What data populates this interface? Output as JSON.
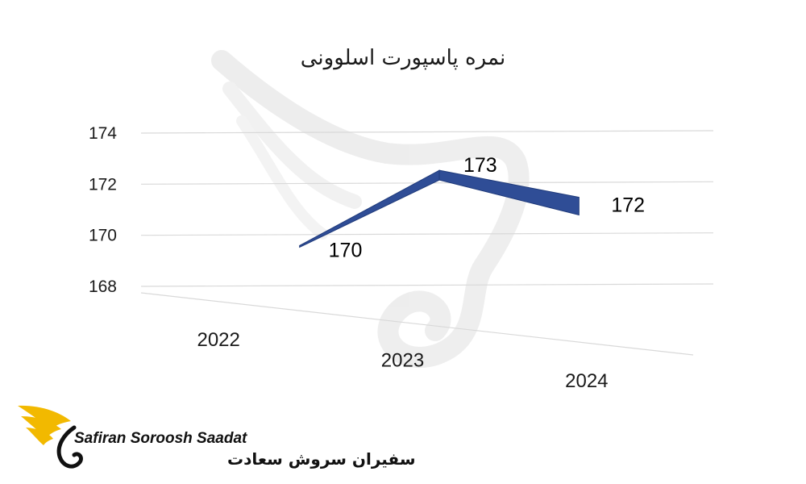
{
  "chart_data": {
    "type": "line",
    "title": "نمره پاسپورت اسلوونی",
    "categories": [
      "2022",
      "2023",
      "2024"
    ],
    "values": [
      170,
      173,
      172
    ],
    "data_labels": [
      "170",
      "173",
      "172"
    ],
    "ylim": [
      168,
      174
    ],
    "y_ticks": [
      "168",
      "170",
      "172",
      "174"
    ],
    "grid": true,
    "legend": "none",
    "series_color": "#2f4d96"
  },
  "logo": {
    "name_en": "Safiran Soroosh Saadat",
    "name_fa": "سفیران سروش سعادت",
    "accent_color": "#f2b900"
  }
}
